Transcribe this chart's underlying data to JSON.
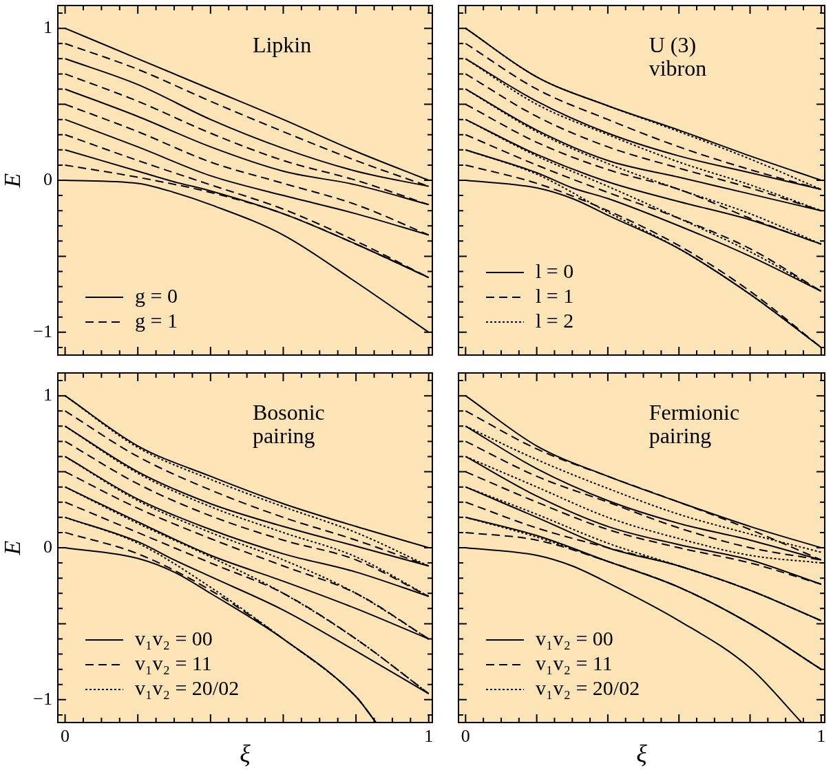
{
  "chart_data": [
    {
      "type": "line",
      "title": "Lipkin",
      "ylabel": "E",
      "legend": "bottom left",
      "tick_labels": "y",
      "xlim": [
        -0.02,
        1.01
      ],
      "ylim": [
        -1.15,
        1.15
      ],
      "xticks": [
        {
          "value": 0,
          "label": null
        },
        {
          "value": 0.05,
          "label": null
        },
        {
          "value": 0.1,
          "label": null
        },
        {
          "value": 0.15,
          "label": null
        },
        {
          "value": 0.2,
          "label": null
        },
        {
          "value": 0.25,
          "label": null
        },
        {
          "value": 0.3,
          "label": null
        },
        {
          "value": 0.35,
          "label": null
        },
        {
          "value": 0.4,
          "label": null
        },
        {
          "value": 0.45,
          "label": null
        },
        {
          "value": 0.5,
          "label": null
        },
        {
          "value": 0.55,
          "label": null
        },
        {
          "value": 0.6,
          "label": null
        },
        {
          "value": 0.65,
          "label": null
        },
        {
          "value": 0.7,
          "label": null
        },
        {
          "value": 0.75,
          "label": null
        },
        {
          "value": 0.8,
          "label": null
        },
        {
          "value": 0.85,
          "label": null
        },
        {
          "value": 0.9,
          "label": null
        },
        {
          "value": 0.95,
          "label": null
        },
        {
          "value": 1,
          "label": null
        }
      ],
      "yticks": [
        {
          "value": -1.1,
          "label": null
        },
        {
          "value": -1,
          "label": "−1"
        },
        {
          "value": -0.9,
          "label": null
        },
        {
          "value": -0.8,
          "label": null
        },
        {
          "value": -0.7,
          "label": null
        },
        {
          "value": -0.6,
          "label": null
        },
        {
          "value": -0.5,
          "label": null
        },
        {
          "value": -0.4,
          "label": null
        },
        {
          "value": -0.3,
          "label": null
        },
        {
          "value": -0.2,
          "label": null
        },
        {
          "value": -0.1,
          "label": null
        },
        {
          "value": 0,
          "label": "0"
        },
        {
          "value": 0.1,
          "label": null
        },
        {
          "value": 0.2,
          "label": null
        },
        {
          "value": 0.3,
          "label": null
        },
        {
          "value": 0.4,
          "label": null
        },
        {
          "value": 0.5,
          "label": null
        },
        {
          "value": 0.6,
          "label": null
        },
        {
          "value": 0.7,
          "label": null
        },
        {
          "value": 0.8,
          "label": null
        },
        {
          "value": 0.9,
          "label": null
        },
        {
          "value": 1,
          "label": "1"
        },
        {
          "value": 1.1,
          "label": null
        }
      ],
      "x": [
        0,
        0.2,
        0.4,
        0.6,
        0.8,
        1
      ],
      "series": [
        {
          "name": "g = 0",
          "color": "#000000",
          "line_style": "solid",
          "values": [
            1,
            0.8,
            0.6,
            0.4,
            0.19,
            0
          ]
        },
        {
          "color": "#000000",
          "line_style": "solid",
          "values": [
            0.8,
            0.63,
            0.4,
            0.21,
            0.06,
            -0.04
          ]
        },
        {
          "color": "#000000",
          "line_style": "solid",
          "values": [
            0.6,
            0.42,
            0.22,
            0.06,
            -0.03,
            -0.16
          ]
        },
        {
          "color": "#000000",
          "line_style": "solid",
          "values": [
            0.4,
            0.22,
            0.03,
            -0.1,
            -0.22,
            -0.36
          ]
        },
        {
          "color": "#000000",
          "line_style": "solid",
          "x": [
            0,
            0.2,
            0.3,
            0.4,
            0.6,
            0.8,
            1
          ],
          "values": [
            0.2,
            0.06,
            -0.01,
            -0.07,
            -0.22,
            -0.42,
            -0.64
          ]
        },
        {
          "color": "#000000",
          "line_style": "solid",
          "x": [
            0,
            0.2,
            0.3,
            0.4,
            0.6,
            0.8,
            1
          ],
          "values": [
            0,
            -0.02,
            -0.08,
            -0.16,
            -0.36,
            -0.67,
            -1
          ]
        },
        {
          "name": "g = 1",
          "color": "#000000",
          "line_style": "dashed",
          "values": [
            0.9,
            0.73,
            0.52,
            0.32,
            0.13,
            -0.04
          ]
        },
        {
          "color": "#000000",
          "line_style": "dashed",
          "values": [
            0.7,
            0.52,
            0.31,
            0.13,
            0,
            -0.16
          ]
        },
        {
          "color": "#000000",
          "line_style": "dashed",
          "values": [
            0.5,
            0.32,
            0.12,
            -0.02,
            -0.16,
            -0.36
          ]
        },
        {
          "color": "#000000",
          "line_style": "dashed",
          "values": [
            0.3,
            0.13,
            -0.03,
            -0.19,
            -0.4,
            -0.64
          ]
        },
        {
          "color": "#000000",
          "line_style": "dashed",
          "values": [
            0.1,
            0.02,
            -0.08,
            -0.22,
            -0.42,
            -0.64
          ]
        }
      ]
    },
    {
      "type": "line",
      "title": "U (3)\nvibron",
      "legend": "bottom left",
      "tick_labels": false,
      "xlim": [
        -0.02,
        1.01
      ],
      "ylim": [
        -1.15,
        1.15
      ],
      "xticks": [
        {
          "value": 0,
          "label": null
        },
        {
          "value": 0.05,
          "label": null
        },
        {
          "value": 0.1,
          "label": null
        },
        {
          "value": 0.15,
          "label": null
        },
        {
          "value": 0.2,
          "label": null
        },
        {
          "value": 0.25,
          "label": null
        },
        {
          "value": 0.3,
          "label": null
        },
        {
          "value": 0.35,
          "label": null
        },
        {
          "value": 0.4,
          "label": null
        },
        {
          "value": 0.45,
          "label": null
        },
        {
          "value": 0.5,
          "label": null
        },
        {
          "value": 0.55,
          "label": null
        },
        {
          "value": 0.6,
          "label": null
        },
        {
          "value": 0.65,
          "label": null
        },
        {
          "value": 0.7,
          "label": null
        },
        {
          "value": 0.75,
          "label": null
        },
        {
          "value": 0.8,
          "label": null
        },
        {
          "value": 0.85,
          "label": null
        },
        {
          "value": 0.9,
          "label": null
        },
        {
          "value": 0.95,
          "label": null
        },
        {
          "value": 1,
          "label": null
        }
      ],
      "yticks": [
        {
          "value": -1.1,
          "label": null
        },
        {
          "value": -1,
          "label": null
        },
        {
          "value": -0.9,
          "label": null
        },
        {
          "value": -0.8,
          "label": null
        },
        {
          "value": -0.7,
          "label": null
        },
        {
          "value": -0.6,
          "label": null
        },
        {
          "value": -0.5,
          "label": null
        },
        {
          "value": -0.4,
          "label": null
        },
        {
          "value": -0.3,
          "label": null
        },
        {
          "value": -0.2,
          "label": null
        },
        {
          "value": -0.1,
          "label": null
        },
        {
          "value": 0,
          "label": null
        },
        {
          "value": 0.1,
          "label": null
        },
        {
          "value": 0.2,
          "label": null
        },
        {
          "value": 0.3,
          "label": null
        },
        {
          "value": 0.4,
          "label": null
        },
        {
          "value": 0.5,
          "label": null
        },
        {
          "value": 0.6,
          "label": null
        },
        {
          "value": 0.7,
          "label": null
        },
        {
          "value": 0.8,
          "label": null
        },
        {
          "value": 0.9,
          "label": null
        },
        {
          "value": 1,
          "label": null
        },
        {
          "value": 1.1,
          "label": null
        }
      ],
      "x": [
        0,
        0.2,
        0.4,
        0.6,
        0.8,
        1
      ],
      "series": [
        {
          "name": "l = 0",
          "color": "#000000",
          "line_style": "solid",
          "values": [
            1,
            0.68,
            0.49,
            0.33,
            0.16,
            0
          ]
        },
        {
          "color": "#000000",
          "line_style": "solid",
          "values": [
            0.8,
            0.52,
            0.31,
            0.16,
            0.05,
            -0.06
          ]
        },
        {
          "color": "#000000",
          "line_style": "solid",
          "values": [
            0.6,
            0.33,
            0.13,
            0.02,
            -0.09,
            -0.2
          ]
        },
        {
          "color": "#000000",
          "line_style": "solid",
          "values": [
            0.4,
            0.17,
            -0.01,
            -0.14,
            -0.26,
            -0.42
          ]
        },
        {
          "color": "#000000",
          "line_style": "solid",
          "x": [
            0,
            0.2,
            0.3,
            0.4,
            0.6,
            0.8,
            1
          ],
          "values": [
            0.2,
            0.05,
            -0.05,
            -0.12,
            -0.3,
            -0.5,
            -0.73
          ]
        },
        {
          "color": "#000000",
          "line_style": "solid",
          "x": [
            0,
            0.2,
            0.3,
            0.4,
            0.6,
            0.8,
            1
          ],
          "values": [
            0,
            -0.05,
            -0.12,
            -0.23,
            -0.45,
            -0.75,
            -1.1
          ]
        },
        {
          "name": "l = 1",
          "color": "#000000",
          "line_style": "dashed",
          "values": [
            0.9,
            0.6,
            0.4,
            0.22,
            0.07,
            -0.06
          ]
        },
        {
          "color": "#000000",
          "line_style": "dashed",
          "values": [
            0.7,
            0.42,
            0.22,
            0.08,
            -0.05,
            -0.2
          ]
        },
        {
          "color": "#000000",
          "line_style": "dashed",
          "values": [
            0.5,
            0.25,
            0.07,
            -0.06,
            -0.25,
            -0.42
          ]
        },
        {
          "color": "#000000",
          "line_style": "dashed",
          "values": [
            0.3,
            0.1,
            -0.08,
            -0.25,
            -0.45,
            -0.73
          ]
        },
        {
          "color": "#000000",
          "line_style": "dashed",
          "values": [
            0.1,
            -0.02,
            -0.2,
            -0.43,
            -0.73,
            -1.1
          ]
        },
        {
          "name": "l = 2",
          "color": "#000000",
          "line_style": "dotted",
          "values": [
            1,
            0.68,
            0.49,
            0.32,
            0.14,
            -0.06
          ]
        },
        {
          "color": "#000000",
          "line_style": "dotted",
          "values": [
            0.8,
            0.5,
            0.3,
            0.12,
            -0.03,
            -0.2
          ]
        },
        {
          "color": "#000000",
          "line_style": "dotted",
          "values": [
            0.6,
            0.32,
            0.11,
            -0.06,
            -0.22,
            -0.42
          ]
        },
        {
          "color": "#000000",
          "line_style": "dotted",
          "values": [
            0.4,
            0.16,
            -0.04,
            -0.25,
            -0.47,
            -0.73
          ]
        },
        {
          "color": "#000000",
          "line_style": "dotted",
          "values": [
            0.2,
            0.04,
            -0.21,
            -0.45,
            -0.75,
            -1.1
          ]
        }
      ]
    },
    {
      "type": "line",
      "title": "Bosonic\npairing",
      "xlabel": "ξ",
      "ylabel": "E",
      "legend": "bottom left",
      "xlim": [
        -0.02,
        1.01
      ],
      "ylim": [
        -1.15,
        1.15
      ],
      "xticks": [
        {
          "value": 0,
          "label": "0"
        },
        {
          "value": 0.05,
          "label": null
        },
        {
          "value": 0.1,
          "label": null
        },
        {
          "value": 0.15,
          "label": null
        },
        {
          "value": 0.2,
          "label": null
        },
        {
          "value": 0.25,
          "label": null
        },
        {
          "value": 0.3,
          "label": null
        },
        {
          "value": 0.35,
          "label": null
        },
        {
          "value": 0.4,
          "label": null
        },
        {
          "value": 0.45,
          "label": null
        },
        {
          "value": 0.5,
          "label": null
        },
        {
          "value": 0.55,
          "label": null
        },
        {
          "value": 0.6,
          "label": null
        },
        {
          "value": 0.65,
          "label": null
        },
        {
          "value": 0.7,
          "label": null
        },
        {
          "value": 0.75,
          "label": null
        },
        {
          "value": 0.8,
          "label": null
        },
        {
          "value": 0.85,
          "label": null
        },
        {
          "value": 0.9,
          "label": null
        },
        {
          "value": 0.95,
          "label": null
        },
        {
          "value": 1,
          "label": "1"
        }
      ],
      "yticks": [
        {
          "value": -1.1,
          "label": null
        },
        {
          "value": -1,
          "label": "−1"
        },
        {
          "value": -0.9,
          "label": null
        },
        {
          "value": -0.8,
          "label": null
        },
        {
          "value": -0.7,
          "label": null
        },
        {
          "value": -0.6,
          "label": null
        },
        {
          "value": -0.5,
          "label": null
        },
        {
          "value": -0.4,
          "label": null
        },
        {
          "value": -0.3,
          "label": null
        },
        {
          "value": -0.2,
          "label": null
        },
        {
          "value": -0.1,
          "label": null
        },
        {
          "value": 0,
          "label": "0"
        },
        {
          "value": 0.1,
          "label": null
        },
        {
          "value": 0.2,
          "label": null
        },
        {
          "value": 0.3,
          "label": null
        },
        {
          "value": 0.4,
          "label": null
        },
        {
          "value": 0.5,
          "label": null
        },
        {
          "value": 0.6,
          "label": null
        },
        {
          "value": 0.7,
          "label": null
        },
        {
          "value": 0.8,
          "label": null
        },
        {
          "value": 0.9,
          "label": null
        },
        {
          "value": 1,
          "label": "1"
        },
        {
          "value": 1.1,
          "label": null
        }
      ],
      "x": [
        0,
        0.2,
        0.4,
        0.6,
        0.8,
        1
      ],
      "series": [
        {
          "name": "v₁v₂ = 00",
          "color": "#000000",
          "line_style": "solid",
          "values": [
            1,
            0.67,
            0.47,
            0.29,
            0.14,
            0
          ]
        },
        {
          "color": "#000000",
          "line_style": "solid",
          "values": [
            0.8,
            0.5,
            0.29,
            0.14,
            0.01,
            -0.12
          ]
        },
        {
          "color": "#000000",
          "line_style": "solid",
          "values": [
            0.6,
            0.32,
            0.12,
            -0.04,
            -0.16,
            -0.32
          ]
        },
        {
          "color": "#000000",
          "line_style": "solid",
          "values": [
            0.4,
            0.17,
            -0.05,
            -0.22,
            -0.4,
            -0.6
          ]
        },
        {
          "color": "#000000",
          "line_style": "solid",
          "x": [
            0,
            0.2,
            0.3,
            0.4,
            0.6,
            0.8,
            1
          ],
          "values": [
            0.2,
            0.04,
            -0.08,
            -0.19,
            -0.41,
            -0.68,
            -0.96
          ]
        },
        {
          "color": "#000000",
          "line_style": "solid",
          "x": [
            0,
            0.2,
            0.3,
            0.4,
            0.6,
            0.8,
            0.855
          ],
          "values": [
            0,
            -0.07,
            -0.16,
            -0.3,
            -0.6,
            -0.98,
            -1.15
          ]
        },
        {
          "name": "v₁v₂ = 11",
          "color": "#000000",
          "line_style": "dashed",
          "values": [
            0.9,
            0.6,
            0.38,
            0.2,
            0.05,
            -0.12
          ]
        },
        {
          "color": "#000000",
          "line_style": "dashed",
          "values": [
            0.7,
            0.42,
            0.21,
            0.05,
            -0.08,
            -0.32
          ]
        },
        {
          "color": "#000000",
          "line_style": "dashed",
          "values": [
            0.5,
            0.26,
            0.06,
            -0.12,
            -0.3,
            -0.6
          ]
        },
        {
          "color": "#000000",
          "line_style": "dashed",
          "values": [
            0.3,
            0.1,
            -0.1,
            -0.3,
            -0.6,
            -0.96
          ]
        },
        {
          "color": "#000000",
          "line_style": "dashed",
          "x": [
            0,
            0.2,
            0.4,
            0.6,
            0.8,
            0.855
          ],
          "values": [
            0.1,
            -0.04,
            -0.28,
            -0.6,
            -0.98,
            -1.15
          ]
        },
        {
          "name": "v₁v₂ = 20/02",
          "color": "#000000",
          "line_style": "dotted",
          "values": [
            1,
            0.66,
            0.45,
            0.27,
            0.1,
            -0.12
          ]
        },
        {
          "color": "#000000",
          "line_style": "dotted",
          "values": [
            0.8,
            0.49,
            0.27,
            0.1,
            -0.06,
            -0.32
          ]
        },
        {
          "color": "#000000",
          "line_style": "dotted",
          "values": [
            0.6,
            0.31,
            0.1,
            -0.08,
            -0.3,
            -0.6
          ]
        },
        {
          "color": "#000000",
          "line_style": "dotted",
          "values": [
            0.4,
            0.16,
            -0.06,
            -0.3,
            -0.6,
            -0.96
          ]
        },
        {
          "color": "#000000",
          "line_style": "dotted",
          "x": [
            0,
            0.2,
            0.4,
            0.6,
            0.8,
            0.855
          ],
          "values": [
            0.2,
            0.03,
            -0.26,
            -0.6,
            -0.98,
            -1.15
          ]
        }
      ]
    },
    {
      "type": "line",
      "title": "Fermionic\npairing",
      "xlabel": "ξ",
      "legend": "bottom left",
      "tick_labels": "x",
      "xlim": [
        -0.02,
        1.01
      ],
      "ylim": [
        -1.15,
        1.15
      ],
      "xticks": [
        {
          "value": 0,
          "label": "0"
        },
        {
          "value": 0.05,
          "label": null
        },
        {
          "value": 0.1,
          "label": null
        },
        {
          "value": 0.15,
          "label": null
        },
        {
          "value": 0.2,
          "label": null
        },
        {
          "value": 0.25,
          "label": null
        },
        {
          "value": 0.3,
          "label": null
        },
        {
          "value": 0.35,
          "label": null
        },
        {
          "value": 0.4,
          "label": null
        },
        {
          "value": 0.45,
          "label": null
        },
        {
          "value": 0.5,
          "label": null
        },
        {
          "value": 0.55,
          "label": null
        },
        {
          "value": 0.6,
          "label": null
        },
        {
          "value": 0.65,
          "label": null
        },
        {
          "value": 0.7,
          "label": null
        },
        {
          "value": 0.75,
          "label": null
        },
        {
          "value": 0.8,
          "label": null
        },
        {
          "value": 0.85,
          "label": null
        },
        {
          "value": 0.9,
          "label": null
        },
        {
          "value": 0.95,
          "label": null
        },
        {
          "value": 1,
          "label": "1"
        }
      ],
      "yticks": [
        {
          "value": -1.1,
          "label": null
        },
        {
          "value": -1,
          "label": null
        },
        {
          "value": -0.9,
          "label": null
        },
        {
          "value": -0.8,
          "label": null
        },
        {
          "value": -0.7,
          "label": null
        },
        {
          "value": -0.6,
          "label": null
        },
        {
          "value": -0.5,
          "label": null
        },
        {
          "value": -0.4,
          "label": null
        },
        {
          "value": -0.3,
          "label": null
        },
        {
          "value": -0.2,
          "label": null
        },
        {
          "value": -0.1,
          "label": null
        },
        {
          "value": 0,
          "label": null
        },
        {
          "value": 0.1,
          "label": null
        },
        {
          "value": 0.2,
          "label": null
        },
        {
          "value": 0.3,
          "label": null
        },
        {
          "value": 0.4,
          "label": null
        },
        {
          "value": 0.5,
          "label": null
        },
        {
          "value": 0.6,
          "label": null
        },
        {
          "value": 0.7,
          "label": null
        },
        {
          "value": 0.8,
          "label": null
        },
        {
          "value": 0.9,
          "label": null
        },
        {
          "value": 1,
          "label": null
        },
        {
          "value": 1.1,
          "label": null
        }
      ],
      "x": [
        0,
        0.2,
        0.4,
        0.6,
        0.8,
        1
      ],
      "series": [
        {
          "name": "v₁v₂ = 00",
          "color": "#000000",
          "line_style": "solid",
          "values": [
            1,
            0.67,
            0.47,
            0.3,
            0.14,
            0
          ]
        },
        {
          "color": "#000000",
          "line_style": "solid",
          "values": [
            0.8,
            0.52,
            0.31,
            0.16,
            0.05,
            -0.08
          ]
        },
        {
          "color": "#000000",
          "line_style": "solid",
          "values": [
            0.6,
            0.34,
            0.14,
            0.02,
            -0.08,
            -0.24
          ]
        },
        {
          "color": "#000000",
          "line_style": "solid",
          "values": [
            0.4,
            0.2,
            0,
            -0.12,
            -0.28,
            -0.48
          ]
        },
        {
          "color": "#000000",
          "line_style": "solid",
          "values": [
            0.2,
            0.08,
            -0.09,
            -0.26,
            -0.5,
            -0.8
          ]
        },
        {
          "color": "#000000",
          "line_style": "solid",
          "x": [
            0,
            0.2,
            0.3,
            0.4,
            0.6,
            0.8,
            0.945
          ],
          "values": [
            0,
            -0.05,
            -0.12,
            -0.23,
            -0.48,
            -0.79,
            -1.15
          ]
        },
        {
          "name": "v₁v₂ = 11",
          "color": "#000000",
          "line_style": "dashed",
          "values": [
            0.9,
            0.65,
            0.47,
            0.3,
            0.12,
            -0.08
          ]
        },
        {
          "color": "#000000",
          "line_style": "dashed",
          "values": [
            0.7,
            0.47,
            0.3,
            0.13,
            0,
            -0.08
          ]
        },
        {
          "color": "#000000",
          "line_style": "dashed",
          "values": [
            0.5,
            0.3,
            0.12,
            0,
            -0.1,
            -0.24
          ]
        },
        {
          "color": "#000000",
          "line_style": "dashed",
          "values": [
            0.3,
            0.13,
            0,
            -0.12,
            -0.28,
            -0.48
          ]
        },
        {
          "color": "#000000",
          "line_style": "dashed",
          "values": [
            0.1,
            0.05,
            -0.09,
            -0.26,
            -0.5,
            -0.8
          ]
        },
        {
          "name": "v₁v₂ = 20/02",
          "color": "#000000",
          "line_style": "dotted",
          "values": [
            0.8,
            0.58,
            0.39,
            0.22,
            0.09,
            -0.03
          ]
        },
        {
          "color": "#000000",
          "line_style": "dotted",
          "values": [
            0.6,
            0.4,
            0.2,
            0.06,
            -0.05,
            -0.1
          ]
        },
        {
          "color": "#000000",
          "line_style": "dotted",
          "values": [
            0.4,
            0.22,
            0.03,
            -0.12,
            -0.28,
            -0.48
          ]
        },
        {
          "color": "#000000",
          "line_style": "dotted",
          "values": [
            0.2,
            0.07,
            -0.09,
            -0.26,
            -0.5,
            -0.8
          ]
        }
      ]
    }
  ]
}
